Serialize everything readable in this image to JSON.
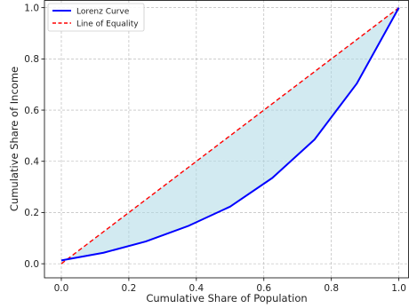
{
  "chart_data": {
    "type": "line",
    "title": "",
    "xlabel": "Cumulative Share of Population",
    "ylabel": "Cumulative Share of Income",
    "xlim": [
      -0.05,
      1.03
    ],
    "ylim": [
      -0.055,
      1.03
    ],
    "xticks": [
      0.0,
      0.2,
      0.4,
      0.6,
      0.8,
      1.0
    ],
    "yticks": [
      0.0,
      0.2,
      0.4,
      0.6,
      0.8,
      1.0
    ],
    "xtick_labels": [
      "0.0",
      "0.2",
      "0.4",
      "0.6",
      "0.8",
      "1.0"
    ],
    "ytick_labels": [
      "0.0",
      "0.2",
      "0.4",
      "0.6",
      "0.8",
      "1.0"
    ],
    "grid": true,
    "legend_position": "top-left",
    "series": [
      {
        "name": "Lorenz Curve",
        "color": "#0000ff",
        "style": "solid",
        "x": [
          0.0,
          0.125,
          0.25,
          0.375,
          0.5,
          0.625,
          0.75,
          0.875,
          1.0
        ],
        "y": [
          0.013,
          0.043,
          0.087,
          0.147,
          0.223,
          0.335,
          0.485,
          0.703,
          1.0
        ]
      },
      {
        "name": "Line of Equality",
        "color": "#ff0000",
        "style": "dashed",
        "x": [
          0.0,
          1.0
        ],
        "y": [
          0.0,
          1.0
        ]
      }
    ],
    "fill_between": {
      "color": "#add8e6",
      "opacity": 0.55
    }
  }
}
